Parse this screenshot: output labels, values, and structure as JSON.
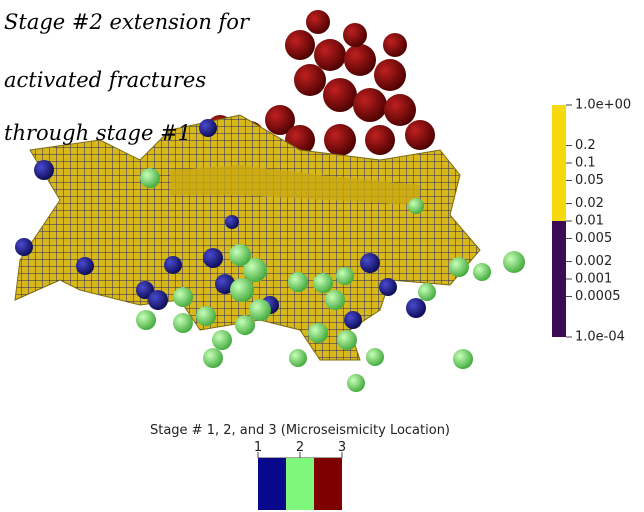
{
  "annotation": {
    "lines": [
      "Stage #2 extension for",
      "activated fractures",
      "through stage #1"
    ]
  },
  "colorbar": {
    "scale": "log",
    "range": [
      0.0001,
      1
    ],
    "segments": [
      {
        "from": 0.01,
        "to": 1,
        "color": "#f5d90a"
      },
      {
        "from": 0.0001,
        "to": 0.01,
        "color": "#3d0b55"
      }
    ],
    "ticks": [
      {
        "value": 1,
        "label": "1.0e+00"
      },
      0.2,
      0.1,
      0.05,
      0.02,
      0.01,
      0.005,
      0.002,
      0.001,
      0.0005,
      {
        "value": 0.0001,
        "label": "1.0e-04"
      }
    ]
  },
  "legend": {
    "title": "Stage # 1, 2,  and 3 (Microseismicity Location)",
    "entries": [
      {
        "label": "1",
        "color": "#08088c"
      },
      {
        "label": "2",
        "color": "#7ff77a"
      },
      {
        "label": "3",
        "color": "#7e0000"
      }
    ]
  }
}
